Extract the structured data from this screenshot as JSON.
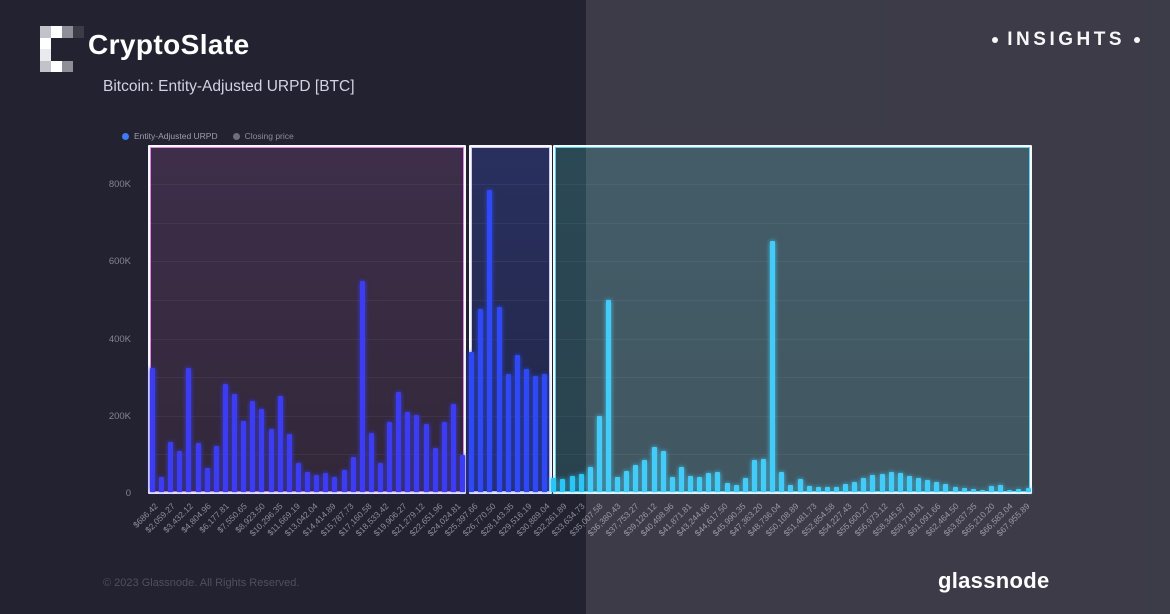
{
  "header": {
    "brand": "CryptoSlate",
    "insights": "INSIGHTS"
  },
  "footer": {
    "copyright": "© 2023 Glassnode. All Rights Reserved.",
    "brand": "glassnode"
  },
  "icons": {
    "logo": "pixelated-c-logo",
    "insights_bullets": "round-dot"
  },
  "chart_data": {
    "type": "bar",
    "title": "Bitcoin: Entity-Adjusted URPD [BTC]",
    "unit": "BTC",
    "x_axis": "BTC price bins (USD)",
    "bin_step_usd": 1372.85,
    "ylim": [
      0,
      903560
    ],
    "grid": "faint horizontal gridlines every 100K",
    "legend_position": "top-left",
    "legend": [
      {
        "label": "Entity-Adjusted URPD",
        "color": "#3d7bf7",
        "active": true
      },
      {
        "label": "Closing price",
        "color": "#6f6e7a",
        "active": false
      }
    ],
    "y_ticks": [
      {
        "label": "0",
        "value": 0
      },
      {
        "label": "200K",
        "value": 200000
      },
      {
        "label": "400K",
        "value": 400000
      },
      {
        "label": "600K",
        "value": 600000
      },
      {
        "label": "800K",
        "value": 800000
      }
    ],
    "x_tick_labels": [
      "$686.42",
      "$2,059.27",
      "$3,432.12",
      "$4,804.96",
      "$6,177.81",
      "$7,550.65",
      "$8,923.50",
      "$10,296.35",
      "$11,669.19",
      "$13,042.04",
      "$14,414.89",
      "$15,787.73",
      "$17,160.58",
      "$18,533.42",
      "$19,906.27",
      "$21,279.12",
      "$22,651.96",
      "$24,024.81",
      "$25,397.66",
      "$26,770.50",
      "$28,143.35",
      "$29,516.19",
      "$30,889.04",
      "$32,261.89",
      "$33,634.73",
      "$35,007.58",
      "$36,380.43",
      "$37,753.27",
      "$39,126.12",
      "$40,498.96",
      "$41,871.81",
      "$43,244.66",
      "$44,617.50",
      "$45,990.35",
      "$47,363.20",
      "$48,736.04",
      "$50,108.89",
      "$51,481.73",
      "$52,854.58",
      "$54,227.43",
      "$55,600.27",
      "$56,973.12",
      "$58,345.97",
      "$59,718.81",
      "$61,091.66",
      "$62,464.50",
      "$63,837.35",
      "$65,210.20",
      "$66,583.04",
      "$67,955.89"
    ],
    "values": [
      322000,
      40000,
      130000,
      105000,
      320000,
      128000,
      62000,
      118000,
      280000,
      253000,
      183000,
      235000,
      214000,
      162000,
      248000,
      149000,
      75000,
      52000,
      44000,
      49000,
      39000,
      57000,
      91000,
      547000,
      153000,
      75000,
      180000,
      260000,
      208000,
      200000,
      175000,
      114000,
      180000,
      227000,
      96000,
      362000,
      474000,
      782000,
      479000,
      305000,
      354000,
      318000,
      300000,
      305000,
      36000,
      33000,
      41000,
      47000,
      66000,
      198000,
      497000,
      38000,
      55000,
      70000,
      83000,
      117000,
      107000,
      40000,
      65000,
      42000,
      40000,
      49000,
      52000,
      23000,
      18000,
      36000,
      83000,
      86000,
      651000,
      52000,
      18000,
      33000,
      16000,
      13000,
      14000,
      13000,
      21000,
      27000,
      36000,
      44000,
      47000,
      52000,
      49000,
      42000,
      36000,
      31000,
      26000,
      21000,
      13000,
      10000,
      8000,
      5000,
      16000,
      18000,
      5000,
      8000,
      10000
    ],
    "regions": [
      {
        "name": "low-price-band",
        "price_range": "≈ $686 – $25,400",
        "bar_start": 0,
        "bar_end": 34,
        "x0": 0.0,
        "x1": 0.3597,
        "bar_color": "#3c3cf2",
        "bg_top": "#3e2e4a",
        "bg_bottom": "#322839",
        "accent": "#dd84e6"
      },
      {
        "name": "mid-price-band",
        "price_range": "≈ $25,400 – $31,800",
        "bar_start": 35,
        "bar_end": 43,
        "x0": 0.3626,
        "x1": 0.4565,
        "bar_color": "#2e49f5",
        "bg_top": "#29305e",
        "bg_bottom": "#212647",
        "accent": "#c7cdf0"
      },
      {
        "name": "high-price-band",
        "price_range": "≈ $31,800 – $68,000",
        "bar_start": 44,
        "bar_end": 96,
        "x0": 0.4587,
        "x1": 1.0,
        "bar_color": "#2bc6f6",
        "bg_top": "#2b4855",
        "bg_bottom": "#29424e",
        "accent": "#40d6f0"
      }
    ]
  }
}
